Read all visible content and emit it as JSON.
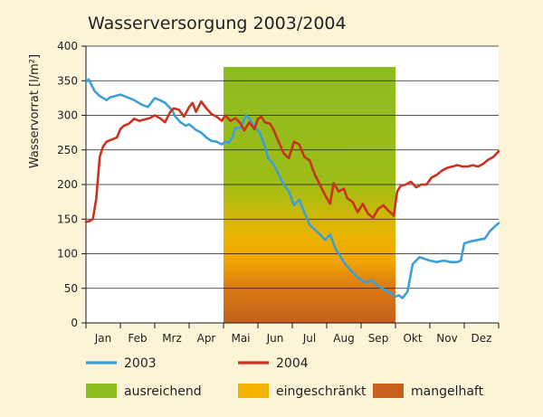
{
  "chart_data": {
    "type": "line",
    "title": "Wasserversorgung 2003/2004",
    "ylabel": "Wasservorrat [l/m²]",
    "xlabel": "",
    "xlim": [
      0,
      12
    ],
    "ylim": [
      0,
      400
    ],
    "yticks": [
      0,
      50,
      100,
      150,
      200,
      250,
      300,
      350,
      400
    ],
    "months": [
      "Jan",
      "Feb",
      "Mrz",
      "Apr",
      "Mai",
      "Jun",
      "Jul",
      "Aug",
      "Sep",
      "Okt",
      "Nov",
      "Dez"
    ],
    "grid": true,
    "legend_position": "bottom",
    "supply_band": {
      "x_start": 4.0,
      "x_end": 9.0,
      "y_top": 370,
      "levels": [
        {
          "name": "ausreichend",
          "color": "#8cbc1f"
        },
        {
          "name": "eingeschränkt",
          "color": "#f2b200"
        },
        {
          "name": "mangelhaft",
          "color": "#c8611c"
        }
      ]
    },
    "series": [
      {
        "name": "2003",
        "color": "#3c9fd8",
        "x": [
          0,
          0.08,
          0.15,
          0.25,
          0.4,
          0.6,
          0.7,
          0.85,
          1.0,
          1.2,
          1.4,
          1.6,
          1.8,
          2.0,
          2.15,
          2.3,
          2.5,
          2.6,
          2.75,
          2.9,
          3.0,
          3.2,
          3.35,
          3.5,
          3.65,
          3.8,
          3.95,
          4.05,
          4.15,
          4.25,
          4.35,
          4.5,
          4.65,
          4.75,
          4.9,
          5.05,
          5.2,
          5.3,
          5.45,
          5.6,
          5.75,
          5.9,
          6.05,
          6.2,
          6.35,
          6.5,
          6.65,
          6.8,
          6.95,
          7.1,
          7.25,
          7.4,
          7.55,
          7.7,
          7.85,
          8.0,
          8.15,
          8.3,
          8.45,
          8.6,
          8.75,
          8.9,
          9.0,
          9.1,
          9.2,
          9.35,
          9.5,
          9.7,
          10.0,
          10.2,
          10.4,
          10.6,
          10.8,
          10.9,
          11.0,
          11.2,
          11.4,
          11.6,
          11.75,
          11.9,
          12.0
        ],
        "y": [
          348,
          352,
          345,
          335,
          328,
          322,
          326,
          328,
          330,
          326,
          322,
          316,
          312,
          325,
          322,
          318,
          308,
          298,
          290,
          285,
          287,
          279,
          275,
          268,
          263,
          262,
          258,
          262,
          260,
          268,
          282,
          282,
          300,
          296,
          283,
          276,
          255,
          238,
          230,
          215,
          200,
          190,
          170,
          178,
          160,
          142,
          135,
          128,
          120,
          128,
          108,
          96,
          84,
          76,
          68,
          62,
          58,
          62,
          55,
          50,
          46,
          42,
          38,
          40,
          36,
          45,
          85,
          95,
          90,
          88,
          90,
          88,
          88,
          90,
          115,
          118,
          120,
          122,
          133,
          140,
          144
        ]
      },
      {
        "name": "2004",
        "color": "#c8321f",
        "x": [
          0,
          0.1,
          0.2,
          0.3,
          0.4,
          0.5,
          0.6,
          0.75,
          0.9,
          1.0,
          1.1,
          1.25,
          1.4,
          1.55,
          1.7,
          1.85,
          2.0,
          2.15,
          2.3,
          2.45,
          2.55,
          2.7,
          2.85,
          3.0,
          3.1,
          3.2,
          3.35,
          3.5,
          3.65,
          3.8,
          3.95,
          4.05,
          4.2,
          4.35,
          4.5,
          4.6,
          4.75,
          4.9,
          5.0,
          5.1,
          5.2,
          5.35,
          5.45,
          5.6,
          5.75,
          5.9,
          6.05,
          6.2,
          6.35,
          6.5,
          6.65,
          6.8,
          6.95,
          7.1,
          7.2,
          7.35,
          7.5,
          7.6,
          7.75,
          7.9,
          8.05,
          8.2,
          8.35,
          8.5,
          8.65,
          8.8,
          8.95,
          9.05,
          9.15,
          9.3,
          9.45,
          9.6,
          9.75,
          9.9,
          10.05,
          10.2,
          10.35,
          10.5,
          10.65,
          10.8,
          10.95,
          11.1,
          11.25,
          11.4,
          11.55,
          11.7,
          11.85,
          12.0
        ],
        "y": [
          146,
          147,
          150,
          180,
          240,
          255,
          262,
          265,
          268,
          280,
          285,
          288,
          295,
          292,
          294,
          296,
          300,
          296,
          290,
          305,
          310,
          308,
          298,
          312,
          318,
          305,
          320,
          310,
          302,
          298,
          292,
          300,
          292,
          296,
          288,
          278,
          290,
          280,
          295,
          298,
          290,
          288,
          280,
          262,
          245,
          238,
          262,
          258,
          240,
          235,
          215,
          200,
          185,
          172,
          202,
          190,
          194,
          180,
          175,
          160,
          172,
          158,
          152,
          165,
          170,
          162,
          155,
          190,
          198,
          200,
          204,
          196,
          200,
          200,
          210,
          214,
          220,
          224,
          226,
          228,
          226,
          226,
          228,
          226,
          230,
          236,
          240,
          248
        ]
      }
    ]
  }
}
